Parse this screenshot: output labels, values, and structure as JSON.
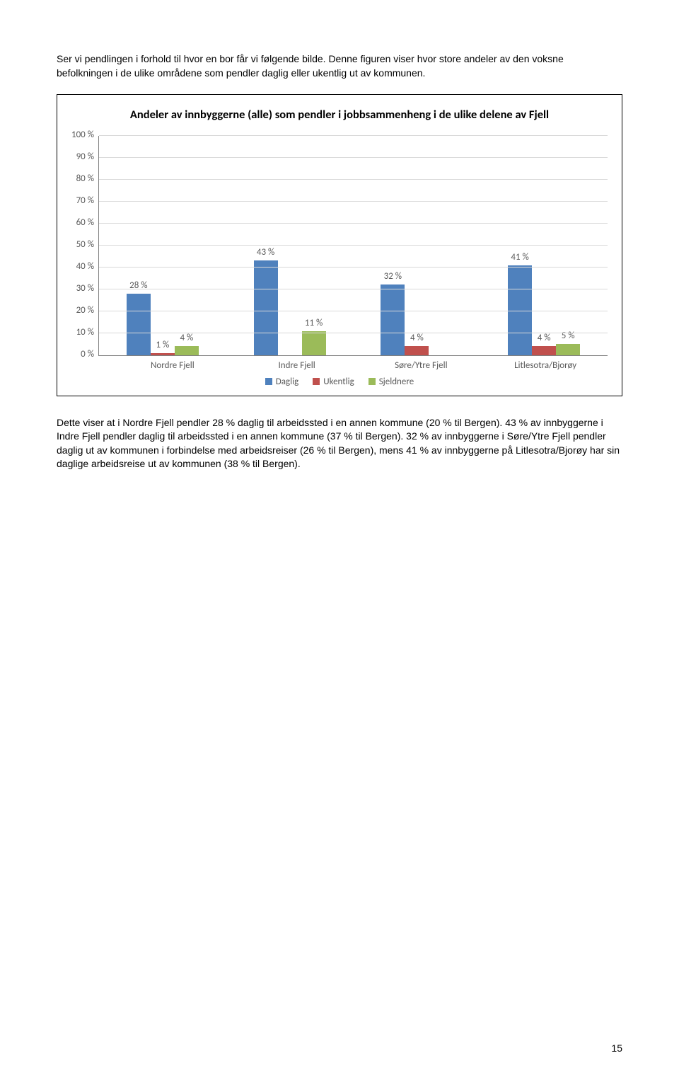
{
  "intro": "Ser vi pendlingen i forhold til hvor en bor får vi følgende bilde. Denne figuren viser hvor store andeler av den voksne befolkningen i de ulike områdene som pendler daglig eller ukentlig ut av kommunen.",
  "chart": {
    "type": "bar",
    "title": "Andeler av innbyggerne (alle) som pendler i jobbsammenheng i de ulike delene av Fjell",
    "ylim": [
      0,
      100
    ],
    "ytick_step": 10,
    "ytick_suffix": " %",
    "grid_color": "#d9d9d9",
    "axis_color": "#808080",
    "label_color": "#595959",
    "categories": [
      "Nordre Fjell",
      "Indre Fjell",
      "Søre/Ytre Fjell",
      "Litlesotra/Bjorøy"
    ],
    "series": [
      {
        "name": "Daglig",
        "color": "#4f81bd",
        "values": [
          28,
          43,
          32,
          41
        ],
        "labels": [
          "28 %",
          "43 %",
          "32 %",
          "41 %"
        ]
      },
      {
        "name": "Ukentlig",
        "color": "#c0504d",
        "values": [
          1,
          0,
          4,
          4
        ],
        "labels": [
          "1 %",
          "",
          "4 %",
          "4 %"
        ]
      },
      {
        "name": "Sjeldnere",
        "color": "#9bbb59",
        "values": [
          4,
          11,
          0,
          5
        ],
        "labels": [
          "4 %",
          "11 %",
          "",
          "5 %"
        ]
      }
    ]
  },
  "body": "Dette viser at i Nordre Fjell pendler 28 % daglig til arbeidssted i en annen kommune (20 % til Bergen). 43 % av innbyggerne i Indre Fjell pendler daglig til arbeidssted i en annen kommune (37 % til Bergen). 32 % av innbyggerne i Søre/Ytre Fjell pendler daglig ut av kommunen i forbindelse med arbeidsreiser (26 % til Bergen), mens 41 % av innbyggerne på Litlesotra/Bjorøy har sin daglige arbeidsreise ut av kommunen (38 % til Bergen).",
  "page_number": "15"
}
